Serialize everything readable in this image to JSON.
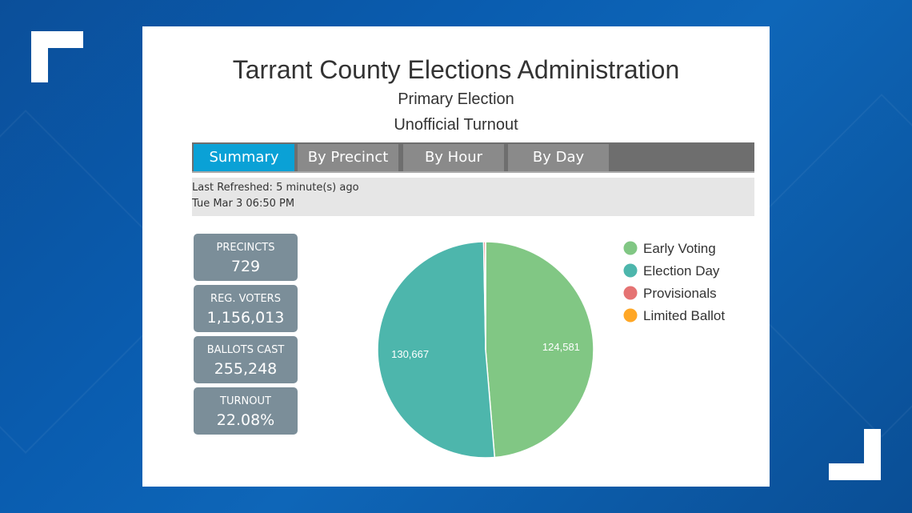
{
  "header": {
    "title": "Tarrant County Elections Administration",
    "subtitle1": "Primary Election",
    "subtitle2": "Unofficial Turnout"
  },
  "tabs": [
    {
      "label": "Summary",
      "active": true
    },
    {
      "label": "By Precinct",
      "active": false
    },
    {
      "label": "By Hour",
      "active": false
    },
    {
      "label": "By Day",
      "active": false
    }
  ],
  "refresh": {
    "line1": "Last Refreshed: 5 minute(s) ago",
    "line2": "Tue Mar 3 06:50 PM"
  },
  "stats": [
    {
      "label": "PRECINCTS",
      "value": "729"
    },
    {
      "label": "REG. VOTERS",
      "value": "1,156,013"
    },
    {
      "label": "BALLOTS CAST",
      "value": "255,248"
    },
    {
      "label": "TURNOUT",
      "value": "22.08%"
    }
  ],
  "colors": {
    "accent_tab": "#0aa1d6",
    "stat_box": "#7b8e99"
  },
  "chart_data": {
    "type": "pie",
    "categories": [
      "Early Voting",
      "Election Day",
      "Provisionals",
      "Limited Ballot"
    ],
    "values": [
      124581,
      130667,
      700,
      50
    ],
    "data_labels": [
      "124,581",
      "130,667",
      "",
      ""
    ],
    "colors": [
      "#81c784",
      "#4db6ac",
      "#e57373",
      "#ffa726"
    ],
    "legend_position": "right"
  }
}
